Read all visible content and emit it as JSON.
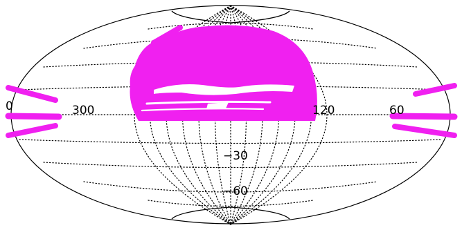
{
  "map": {
    "projection": "aitoff-hammer",
    "coverage_color": "#f020f0",
    "grid_color": "#000000",
    "background": "#ffffff",
    "longitude_labels": [
      "0",
      "300",
      "120",
      "60"
    ],
    "latitude_labels": [
      "−30",
      "−60"
    ]
  }
}
